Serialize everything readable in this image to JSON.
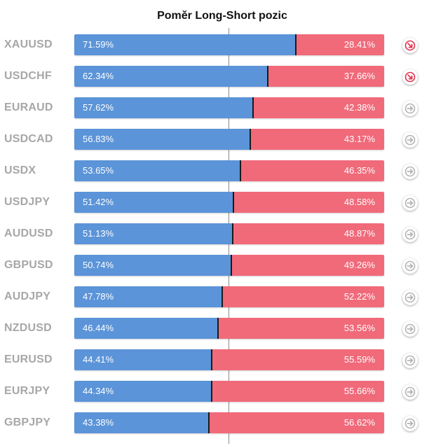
{
  "chart_data": {
    "type": "bar",
    "stacked": true,
    "orientation": "horizontal",
    "title": "Poměr Long-Short pozic",
    "xlim": [
      0,
      100
    ],
    "colors": {
      "long": "#5b94d8",
      "short": "#f06a7a",
      "sentiment_down": "#e0334f",
      "neutral": "#b5b5b5"
    },
    "rows": [
      {
        "pair": "XAUUSD",
        "long": 71.59,
        "short": 28.41,
        "long_label": "71.59%",
        "short_label": "28.41%",
        "signal": "down-right-arrow-icon"
      },
      {
        "pair": "USDCHF",
        "long": 62.34,
        "short": 37.66,
        "long_label": "62.34%",
        "short_label": "37.66%",
        "signal": "down-right-arrow-icon"
      },
      {
        "pair": "EURAUD",
        "long": 57.62,
        "short": 42.38,
        "long_label": "57.62%",
        "short_label": "42.38%",
        "signal": "right-arrow-icon"
      },
      {
        "pair": "USDCAD",
        "long": 56.83,
        "short": 43.17,
        "long_label": "56.83%",
        "short_label": "43.17%",
        "signal": "right-arrow-icon"
      },
      {
        "pair": "USDX",
        "long": 53.65,
        "short": 46.35,
        "long_label": "53.65%",
        "short_label": "46.35%",
        "signal": "right-arrow-icon"
      },
      {
        "pair": "USDJPY",
        "long": 51.42,
        "short": 48.58,
        "long_label": "51.42%",
        "short_label": "48.58%",
        "signal": "right-arrow-icon"
      },
      {
        "pair": "AUDUSD",
        "long": 51.13,
        "short": 48.87,
        "long_label": "51.13%",
        "short_label": "48.87%",
        "signal": "right-arrow-icon"
      },
      {
        "pair": "GBPUSD",
        "long": 50.74,
        "short": 49.26,
        "long_label": "50.74%",
        "short_label": "49.26%",
        "signal": "right-arrow-icon"
      },
      {
        "pair": "AUDJPY",
        "long": 47.78,
        "short": 52.22,
        "long_label": "47.78%",
        "short_label": "52.22%",
        "signal": "right-arrow-icon"
      },
      {
        "pair": "NZDUSD",
        "long": 46.44,
        "short": 53.56,
        "long_label": "46.44%",
        "short_label": "53.56%",
        "signal": "right-arrow-icon"
      },
      {
        "pair": "EURUSD",
        "long": 44.41,
        "short": 55.59,
        "long_label": "44.41%",
        "short_label": "55.59%",
        "signal": "right-arrow-icon"
      },
      {
        "pair": "EURJPY",
        "long": 44.34,
        "short": 55.66,
        "long_label": "44.34%",
        "short_label": "55.66%",
        "signal": "right-arrow-icon"
      },
      {
        "pair": "GBPJPY",
        "long": 43.38,
        "short": 56.62,
        "long_label": "43.38%",
        "short_label": "56.62%",
        "signal": "right-arrow-icon"
      }
    ]
  }
}
